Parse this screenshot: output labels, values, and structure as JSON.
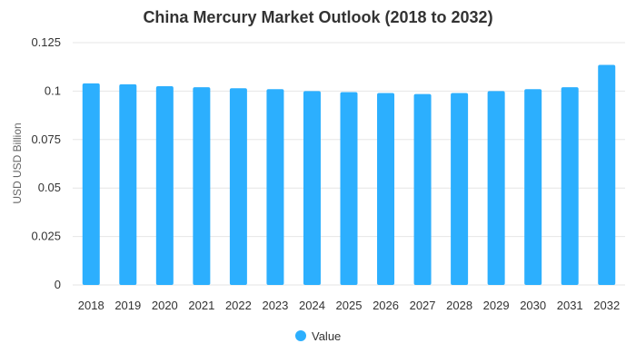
{
  "chart_data": {
    "type": "bar",
    "title": "China Mercury Market Outlook (2018 to 2032)",
    "xlabel": "",
    "ylabel": "USD USD Billion",
    "categories": [
      "2018",
      "2019",
      "2020",
      "2021",
      "2022",
      "2023",
      "2024",
      "2025",
      "2026",
      "2027",
      "2028",
      "2029",
      "2030",
      "2031",
      "2032"
    ],
    "series": [
      {
        "name": "Value",
        "values": [
          0.104,
          0.1035,
          0.1025,
          0.102,
          0.1015,
          0.101,
          0.1,
          0.0995,
          0.099,
          0.0985,
          0.099,
          0.1,
          0.101,
          0.102,
          0.1135
        ]
      }
    ],
    "ylim": [
      0,
      0.125
    ],
    "yticks": [
      "0",
      "0.025",
      "0.05",
      "0.075",
      "0.1",
      "0.125"
    ],
    "ytick_values": [
      0,
      0.025,
      0.05,
      0.075,
      0.1,
      0.125
    ],
    "grid": true,
    "legend_position": "bottom",
    "colors": {
      "bar": "#2caffe"
    }
  }
}
